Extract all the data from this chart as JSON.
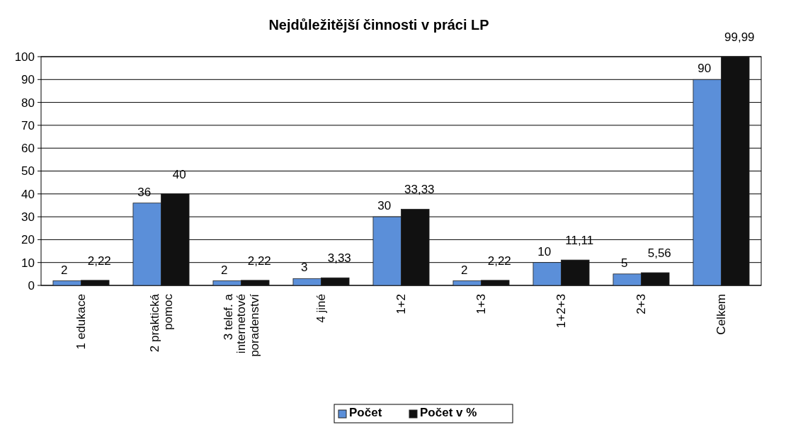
{
  "chart_data": {
    "type": "bar",
    "title": "Nejdůležitější činnosti v práci LP",
    "categories": [
      "1 edukace",
      "2 praktická pomoc",
      "3 telef. a internetové poradenství",
      "4 jiné",
      "1+2",
      "1+3",
      "1+2+3",
      "2+3",
      "Celkem"
    ],
    "series": [
      {
        "name": "Počet",
        "color": "#5b8fd9",
        "values": [
          2,
          36,
          2,
          3,
          30,
          2,
          10,
          5,
          90
        ],
        "value_labels": [
          "2",
          "36",
          "2",
          "3",
          "30",
          "2",
          "10",
          "5",
          "90"
        ]
      },
      {
        "name": "Počet v %",
        "color": "#111111",
        "values": [
          2.22,
          40,
          2.22,
          3.33,
          33.33,
          2.22,
          11.11,
          5.56,
          99.99
        ],
        "value_labels": [
          "2,22",
          "40",
          "2,22",
          "3,33",
          "33,33",
          "2,22",
          "11,11",
          "5,56",
          "99,99"
        ]
      }
    ],
    "ylim": [
      0,
      100
    ],
    "yticks": [
      0,
      10,
      20,
      30,
      40,
      50,
      60,
      70,
      80,
      90,
      100
    ],
    "grid": "y",
    "legend": "bottom"
  }
}
